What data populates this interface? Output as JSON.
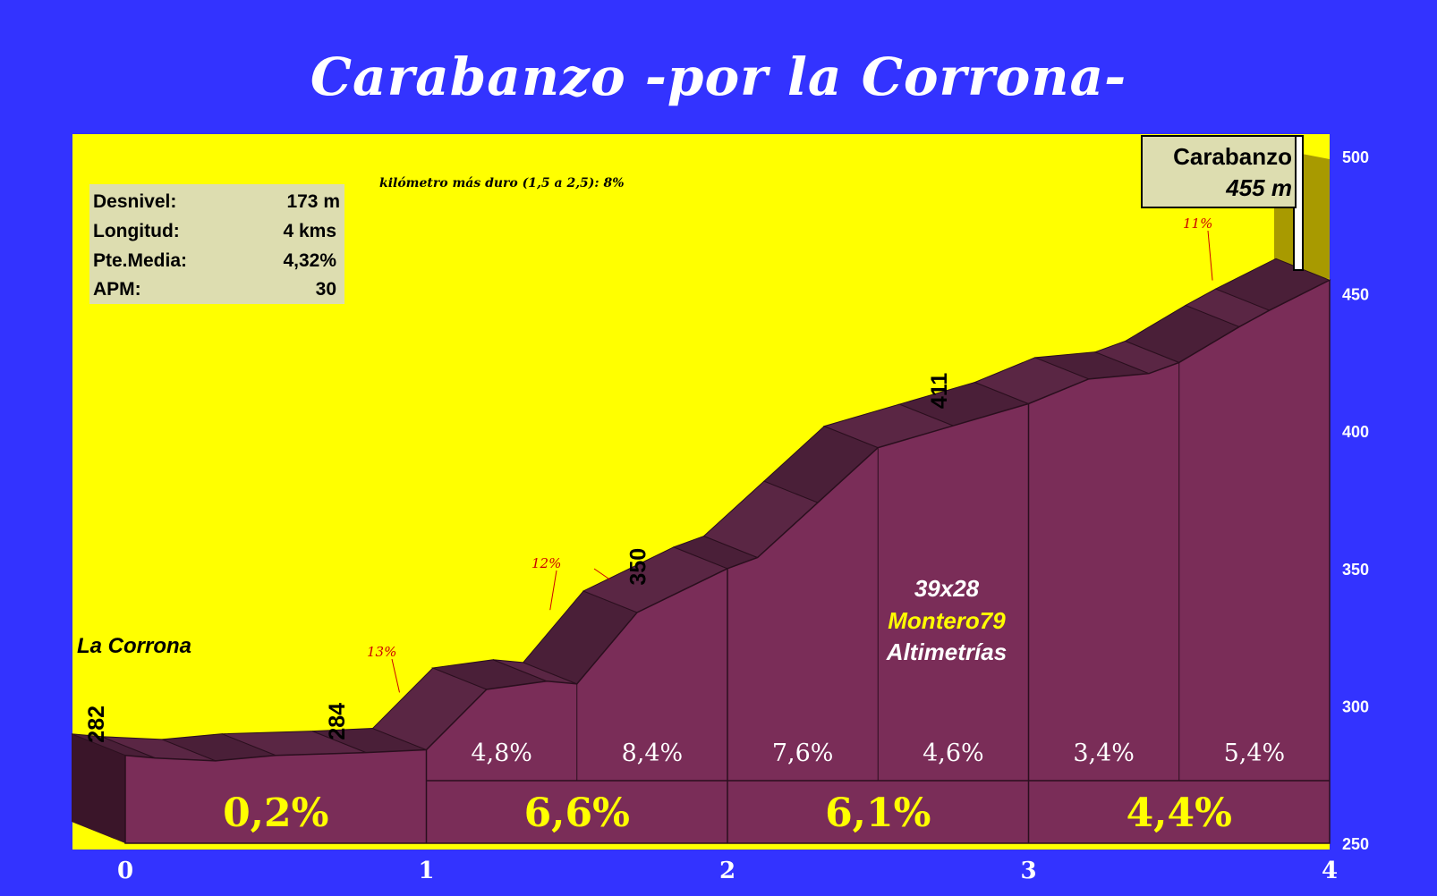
{
  "title": "Carabanzo -por la Corrona-",
  "stats": [
    {
      "label": "Desnivel:",
      "value": "173 m"
    },
    {
      "label": "Longitud:",
      "value": "4 kms"
    },
    {
      "label": "Pte.Media:",
      "value": "4,32%"
    },
    {
      "label": "APM:",
      "value": "30"
    }
  ],
  "hardest_km_note": "kilómetro más duro (1,5 a 2,5):  8%",
  "start_name": "La Corrona",
  "summit": {
    "name": "Carabanzo",
    "altitude": "455 m"
  },
  "credit": {
    "line1": "39x28",
    "line2": "Montero79",
    "line3": "Altimetrías"
  },
  "colors": {
    "background": "#3333ff",
    "sky": "#ffff00",
    "profile_face": "#7a2d58",
    "profile_top": "#4a1f38",
    "credit_yellow": "#ffff00",
    "grade_red": "#cc0000"
  },
  "chart_data": {
    "type": "area",
    "xlabel": "",
    "ylabel": "",
    "xlim": [
      0,
      4
    ],
    "ylim": [
      250,
      500
    ],
    "x_ticks": [
      "0",
      "1",
      "2",
      "3",
      "4"
    ],
    "y_ticks": [
      "250",
      "300",
      "350",
      "400",
      "450",
      "500"
    ],
    "grid": false,
    "profile": {
      "x": [
        0,
        0.1,
        0.3,
        0.5,
        0.8,
        1.0,
        1.2,
        1.4,
        1.5,
        1.7,
        2.0,
        2.1,
        2.3,
        2.5,
        2.75,
        3.0,
        3.2,
        3.4,
        3.5,
        3.7,
        3.8,
        4.0
      ],
      "y": [
        282,
        281,
        280,
        282,
        283,
        284,
        306,
        309,
        308,
        334,
        350,
        354,
        374,
        394,
        402,
        410,
        419,
        421,
        425,
        438,
        444,
        455
      ]
    },
    "altitude_labels": [
      {
        "x": 0,
        "text": "282"
      },
      {
        "x": 0.8,
        "text": "284"
      },
      {
        "x": 1.8,
        "text": "350"
      },
      {
        "x": 2.8,
        "text": "411"
      }
    ],
    "segment_grades": [
      {
        "from": 1.0,
        "to": 1.5,
        "text": "4,8%"
      },
      {
        "from": 1.5,
        "to": 2.0,
        "text": "8,4%"
      },
      {
        "from": 2.0,
        "to": 2.5,
        "text": "7,6%"
      },
      {
        "from": 2.5,
        "to": 3.0,
        "text": "4,6%"
      },
      {
        "from": 3.0,
        "to": 3.5,
        "text": "3,4%"
      },
      {
        "from": 3.5,
        "to": 4.0,
        "text": "5,4%"
      }
    ],
    "km_grades": [
      {
        "from": 0,
        "to": 1,
        "text": "0,2%"
      },
      {
        "from": 1,
        "to": 2,
        "text": "6,6%"
      },
      {
        "from": 2,
        "to": 3,
        "text": "6,1%"
      },
      {
        "from": 3,
        "to": 4,
        "text": "4,4%"
      }
    ],
    "max_grade_annotations": [
      {
        "x": 1.0,
        "y": 301,
        "text": "13%"
      },
      {
        "x": 1.5,
        "y": 331,
        "text": "12%"
      },
      {
        "x": 1.7,
        "y": 342,
        "text": "12%"
      },
      {
        "x": 3.7,
        "y": 451,
        "text": "11%"
      }
    ]
  }
}
